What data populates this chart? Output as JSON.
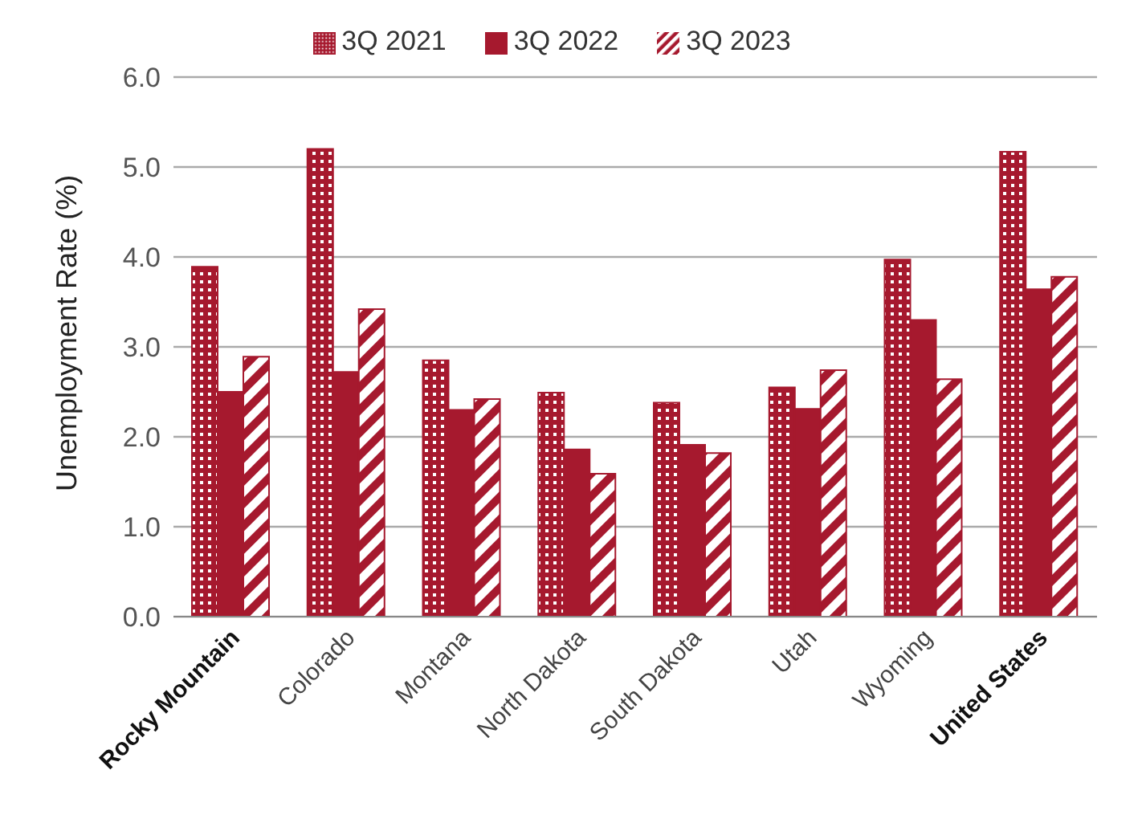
{
  "chart_data": {
    "type": "bar",
    "ylabel": "Unemployment Rate (%)",
    "categories": [
      "Rocky Mountain",
      "Colorado",
      "Montana",
      "North Dakota",
      "South Dakota",
      "Utah",
      "Wyoming",
      "United States"
    ],
    "series": [
      {
        "name": "3Q 2021",
        "color": "#a6192e",
        "values": [
          3.89,
          5.2,
          2.85,
          2.49,
          2.38,
          2.55,
          3.97,
          5.17
        ]
      },
      {
        "name": "3Q 2022",
        "color": "#a6192e",
        "values": [
          2.5,
          2.72,
          2.3,
          1.86,
          1.91,
          2.31,
          3.3,
          3.64
        ]
      },
      {
        "name": "3Q 2023",
        "color": "#a6192e",
        "values": [
          2.89,
          3.42,
          2.42,
          1.59,
          1.82,
          2.74,
          2.64,
          3.78
        ]
      }
    ],
    "ylim": [
      0,
      6
    ],
    "yticks": [
      {
        "value": 0,
        "label": "0.0"
      },
      {
        "value": 1,
        "label": "1.0"
      },
      {
        "value": 2,
        "label": "2.0"
      },
      {
        "value": 3,
        "label": "3.0"
      },
      {
        "value": 4,
        "label": "4.0"
      },
      {
        "value": 5,
        "label": "5.0"
      },
      {
        "value": 6,
        "label": "6.0"
      }
    ],
    "grid": "y",
    "legend": "top"
  }
}
